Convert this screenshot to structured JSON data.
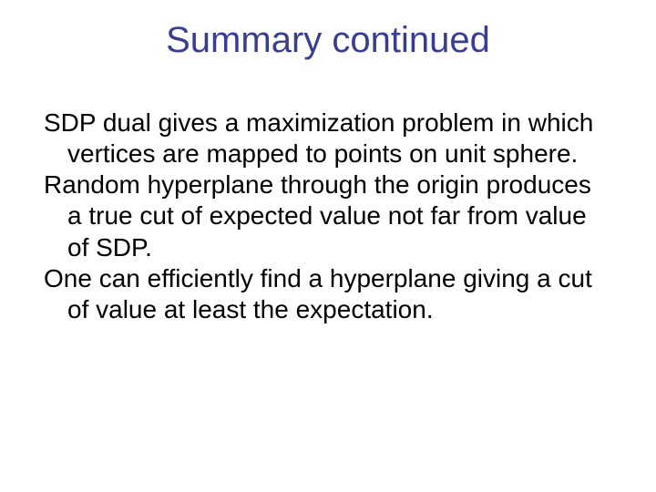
{
  "slide": {
    "title": "Summary continued",
    "paragraphs": [
      "SDP dual gives a maximization problem in which vertices are mapped to points on unit sphere.",
      "Random hyperplane through the origin produces a true cut of expected value not far from value of SDP.",
      "One can efficiently find a hyperplane giving a cut of value at least the expectation."
    ],
    "colors": {
      "title_color": "#3a3e91",
      "body_color": "#000000",
      "background": "#ffffff"
    },
    "typography": {
      "title_fontsize": 40,
      "body_fontsize": 28,
      "font_family": "Arial"
    }
  }
}
